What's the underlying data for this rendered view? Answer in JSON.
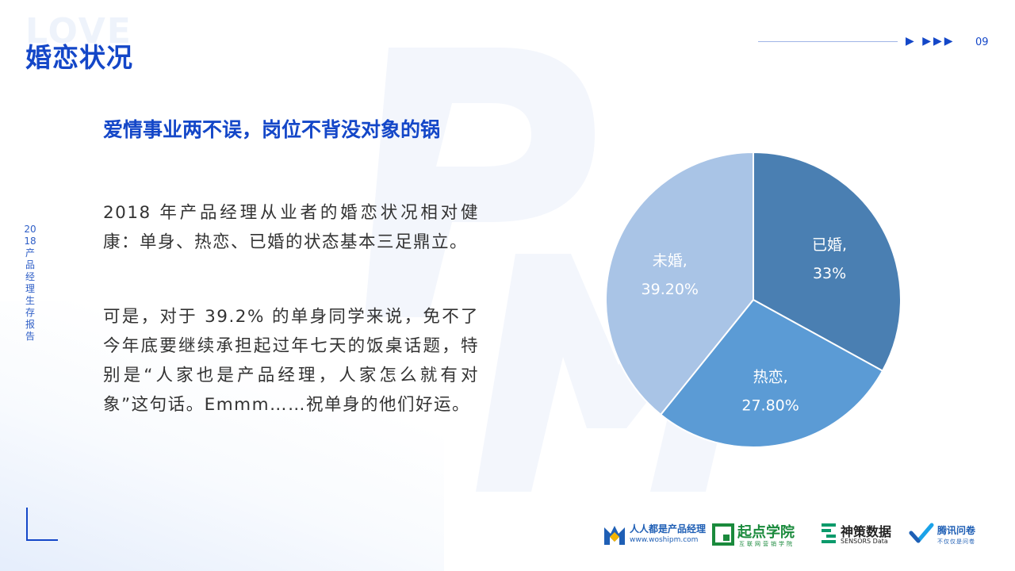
{
  "header": {
    "watermark": "LOVE",
    "title": "婚恋状况",
    "arrows": "▶ ▶▶▶",
    "page_number": "09"
  },
  "sidebar": {
    "report_name": "2018产品经理生存报告"
  },
  "content": {
    "subtitle": "爱情事业两不误，岗位不背没对象的锅",
    "paragraph1": "2018 年产品经理从业者的婚恋状况相对健康：单身、热恋、已婚的状态基本三足鼎立。",
    "paragraph2": "可是，对于 39.2% 的单身同学来说，免不了今年底要继续承担起过年七天的饭桌话题，特别是“人家也是产品经理，人家怎么就有对象”这句话。Emmm……祝单身的他们好运。"
  },
  "chart_data": {
    "type": "pie",
    "slices": [
      {
        "label": "已婚,",
        "value": 33,
        "value_label": "33%",
        "color": "#4a7fb2"
      },
      {
        "label": "热恋,",
        "value": 27.8,
        "value_label": "27.80%",
        "color": "#5b9bd5"
      },
      {
        "label": "未婚,",
        "value": 39.2,
        "value_label": "39.20%",
        "color": "#a9c4e6"
      }
    ],
    "start_angle": "top",
    "direction": "clockwise"
  },
  "footer": {
    "logos": [
      {
        "name": "人人都是产品经理",
        "sub": "www.woshipm.com",
        "icon": "woshipm-logo-icon",
        "color": "#1f5fb5"
      },
      {
        "name": "起点学院",
        "sub": "互联网营销学院",
        "icon": "qidian-logo-icon",
        "color": "#1a8a3c"
      },
      {
        "name": "神策数据",
        "sub": "SENSORS Data",
        "icon": "sensors-logo-icon",
        "color": "#0b9a6b"
      },
      {
        "name": "腾讯问卷",
        "sub": "不仅仅是问卷",
        "icon": "tencent-wj-logo-icon",
        "color": "#1f5fb5"
      }
    ]
  }
}
